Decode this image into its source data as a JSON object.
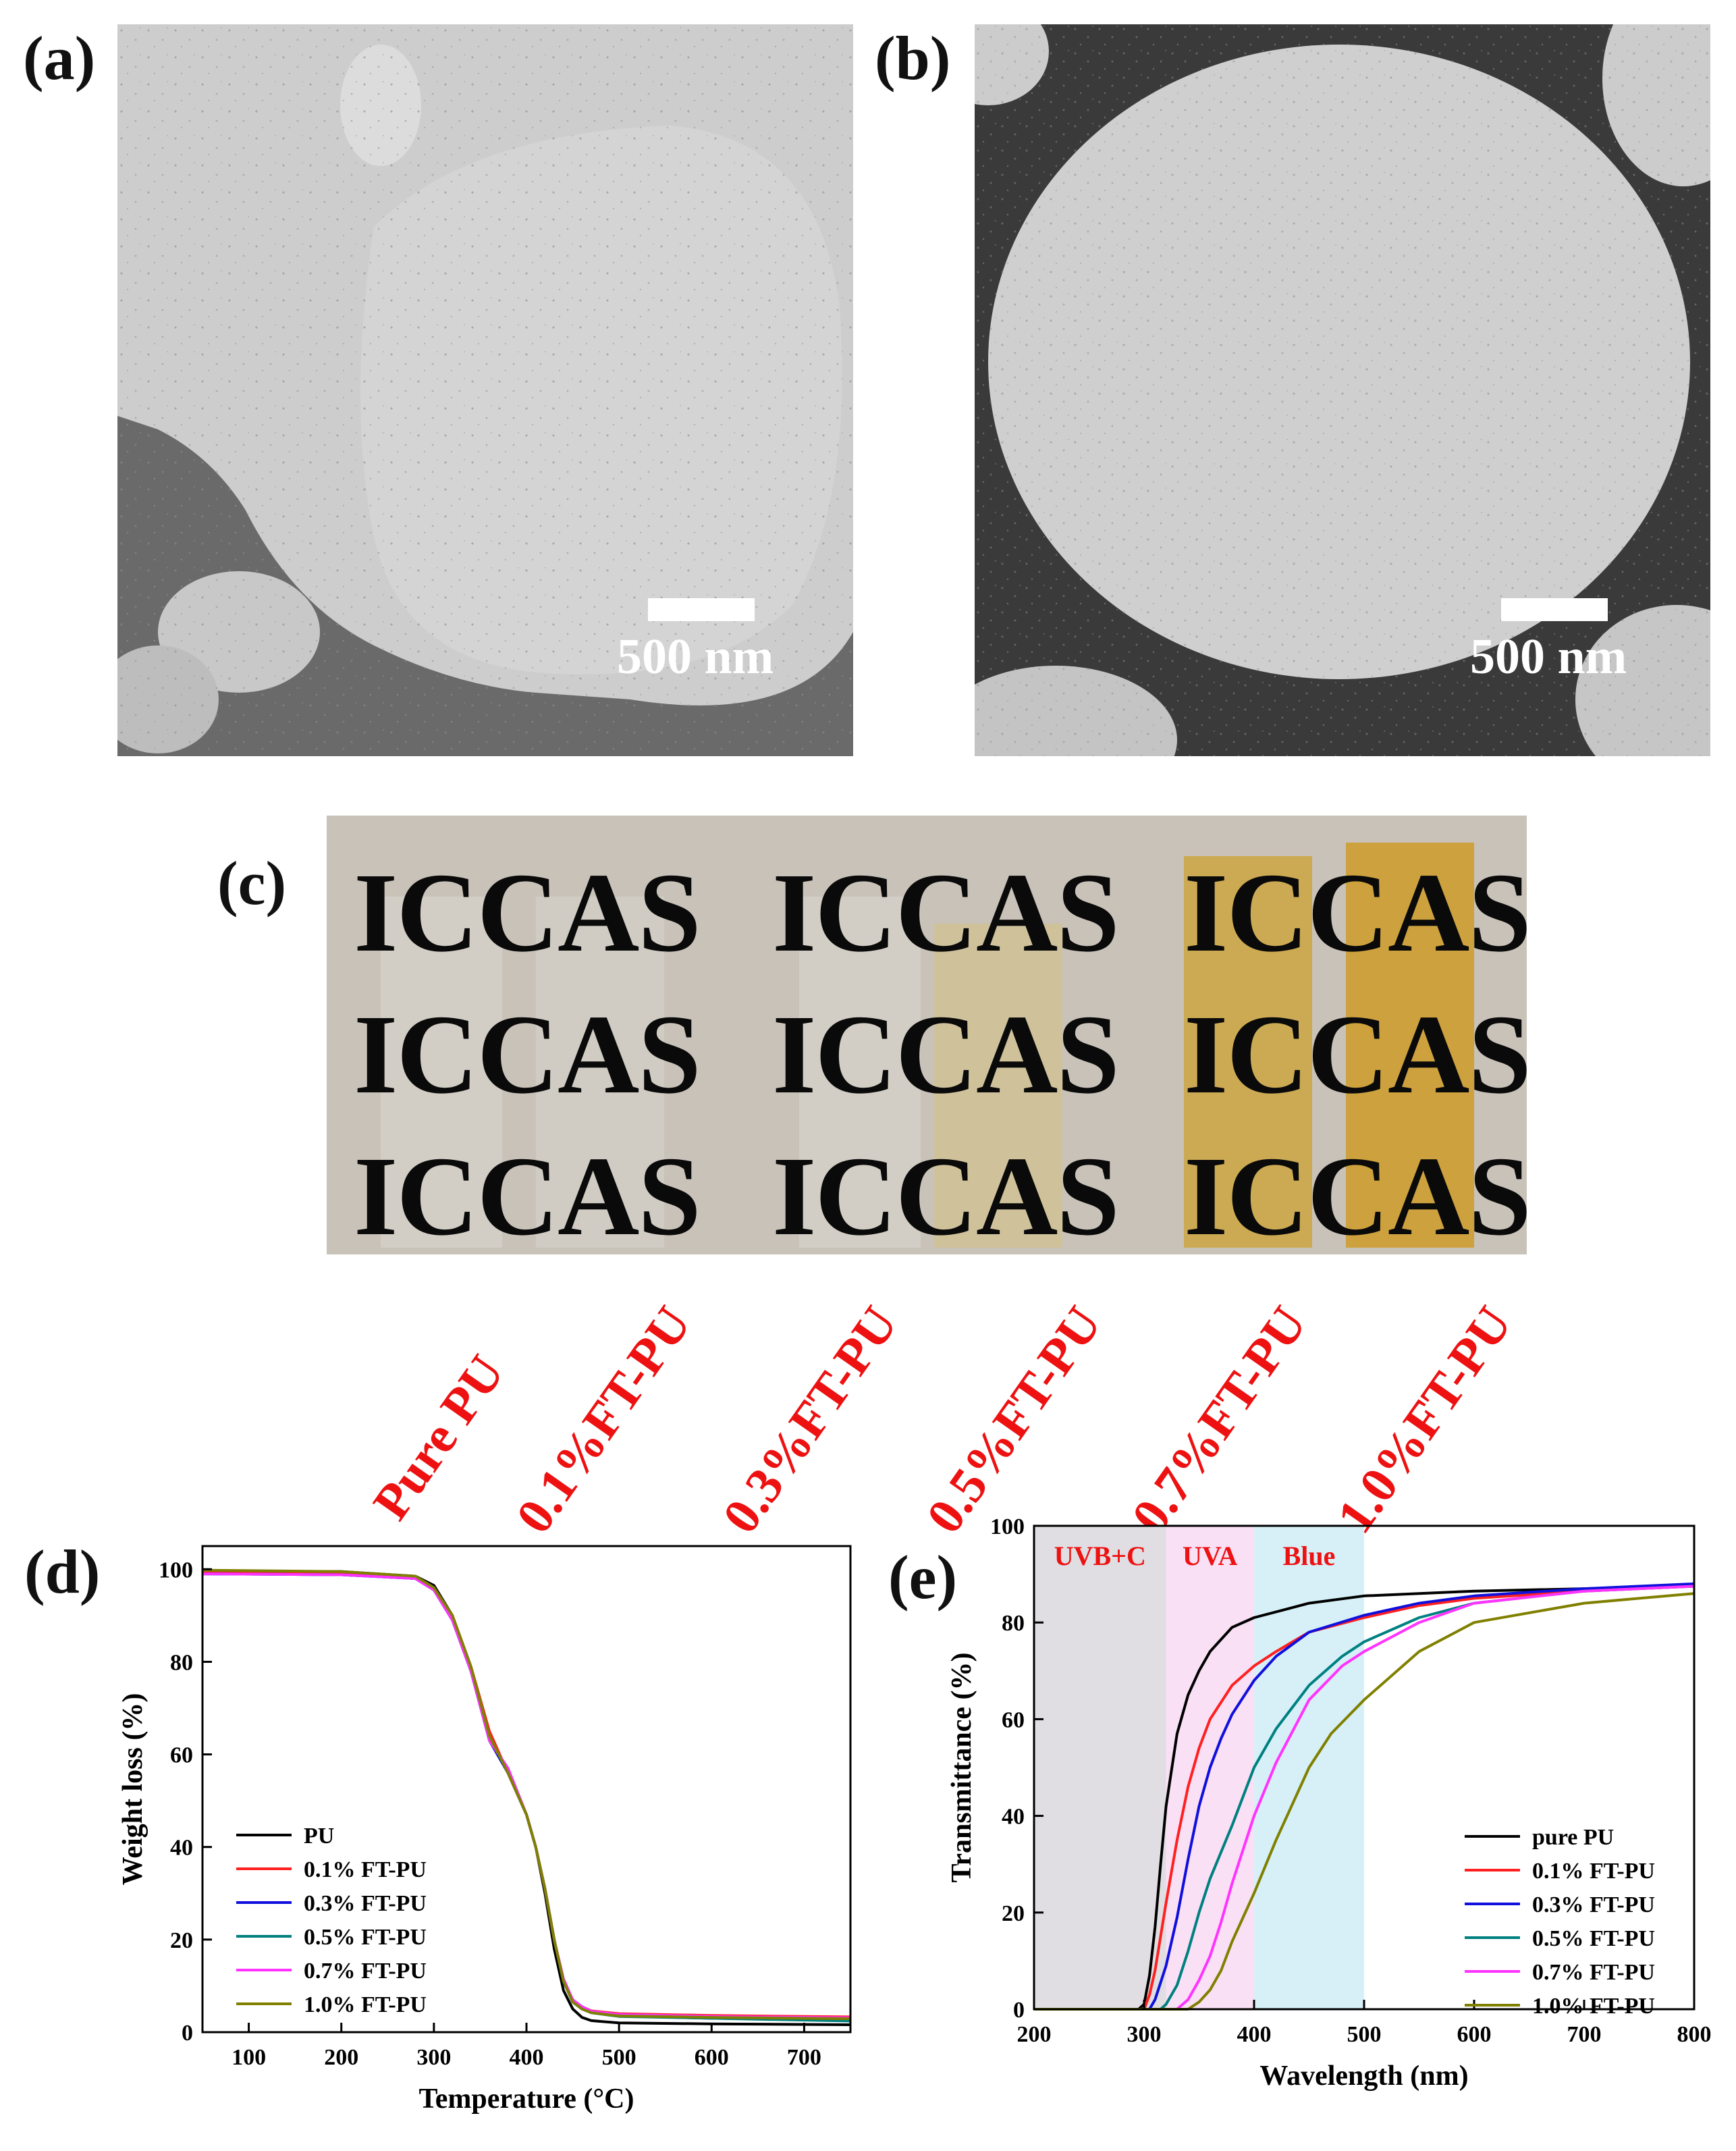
{
  "panels": {
    "a": {
      "letter": "(a)",
      "scale_label": "500 nm"
    },
    "b": {
      "letter": "(b)",
      "scale_label": "500 nm"
    },
    "c": {
      "letter": "(c)",
      "photo_text": "ICCAS",
      "sample_labels": [
        "Pure PU",
        "0.1%FT-PU",
        "0.3%FT-PU",
        "0.5%FT-PU",
        "0.7%FT-PU",
        "1.0%FT-PU"
      ]
    },
    "d": {
      "letter": "(d)"
    },
    "e": {
      "letter": "(e)"
    }
  },
  "colors": {
    "sample_label": "#ee1111",
    "series": [
      "#000000",
      "#ff2020",
      "#1010dd",
      "#008080",
      "#ff33ff",
      "#808000"
    ],
    "band_uvbc": "#e0dee2",
    "band_uva": "#fae0f5",
    "band_blue": "#d7f0f8",
    "band_text": "#ee1111"
  },
  "chart_data": [
    {
      "type": "line",
      "xlabel": "Temperature (°C)",
      "ylabel": "Weight loss (%)",
      "xlim": [
        50,
        750
      ],
      "ylim": [
        0,
        105
      ],
      "xticks": [
        100,
        200,
        300,
        400,
        500,
        600,
        700
      ],
      "yticks": [
        0,
        20,
        40,
        60,
        80,
        100
      ],
      "legend_position": "lower-left",
      "series": [
        {
          "name": "PU",
          "x": [
            50,
            200,
            280,
            300,
            320,
            340,
            360,
            380,
            400,
            410,
            420,
            430,
            440,
            450,
            460,
            470,
            500,
            600,
            750
          ],
          "y": [
            99.5,
            99.5,
            98.5,
            96.5,
            90,
            78,
            64,
            56,
            47,
            40,
            30,
            18,
            9,
            5,
            3.2,
            2.5,
            2,
            1.8,
            1.6
          ]
        },
        {
          "name": "0.1% FT-PU",
          "x": [
            50,
            200,
            280,
            300,
            320,
            340,
            360,
            380,
            400,
            410,
            420,
            430,
            440,
            450,
            460,
            470,
            500,
            600,
            750
          ],
          "y": [
            99.5,
            99,
            98,
            96,
            90,
            79,
            65,
            56,
            47,
            40,
            31,
            20,
            11,
            7,
            5.5,
            4.6,
            4,
            3.6,
            3.3
          ]
        },
        {
          "name": "0.3% FT-PU",
          "x": [
            50,
            200,
            280,
            300,
            320,
            340,
            360,
            380,
            400,
            410,
            420,
            430,
            440,
            450,
            460,
            470,
            500,
            600,
            750
          ],
          "y": [
            99,
            98.8,
            98,
            95.5,
            89,
            78,
            63,
            56,
            47,
            40,
            31,
            20,
            11,
            6.5,
            5,
            4.2,
            3.5,
            3,
            2.6
          ]
        },
        {
          "name": "0.5% FT-PU",
          "x": [
            50,
            200,
            280,
            300,
            320,
            340,
            360,
            380,
            400,
            410,
            420,
            430,
            440,
            450,
            460,
            470,
            500,
            600,
            750
          ],
          "y": [
            99,
            98.8,
            98,
            95.5,
            89,
            78,
            63,
            57,
            47,
            40,
            31,
            20,
            11,
            6.5,
            5,
            4.2,
            3.4,
            3,
            2.4
          ]
        },
        {
          "name": "0.7% FT-PU",
          "x": [
            50,
            200,
            280,
            300,
            320,
            340,
            360,
            380,
            400,
            410,
            420,
            430,
            440,
            450,
            460,
            470,
            500,
            600,
            750
          ],
          "y": [
            99,
            98.8,
            98,
            95.5,
            89,
            78,
            63,
            57,
            47,
            40,
            31,
            20,
            11.5,
            7,
            5.5,
            4.5,
            3.8,
            3.4,
            3.1
          ]
        },
        {
          "name": "1.0% FT-PU",
          "x": [
            50,
            200,
            280,
            300,
            320,
            340,
            360,
            380,
            400,
            410,
            420,
            430,
            440,
            450,
            460,
            470,
            500,
            600,
            750
          ],
          "y": [
            99.8,
            99.5,
            98.5,
            96,
            90,
            79,
            64,
            56,
            47,
            40,
            31,
            20,
            11,
            6.5,
            5,
            4.2,
            3.5,
            3.2,
            2.9
          ]
        }
      ]
    },
    {
      "type": "line",
      "xlabel": "Wavelength (nm)",
      "ylabel": "Transmittance (%)",
      "xlim": [
        200,
        800
      ],
      "ylim": [
        0,
        100
      ],
      "xticks": [
        200,
        300,
        400,
        500,
        600,
        700,
        800
      ],
      "yticks": [
        0,
        20,
        40,
        60,
        80,
        100
      ],
      "legend_position": "lower-right",
      "bands": [
        {
          "label": "UVB+C",
          "from": 200,
          "to": 320
        },
        {
          "label": "UVA",
          "from": 320,
          "to": 400
        },
        {
          "label": "Blue",
          "from": 400,
          "to": 500
        }
      ],
      "series": [
        {
          "name": "pure PU",
          "x": [
            200,
            295,
            300,
            305,
            310,
            315,
            320,
            330,
            340,
            350,
            360,
            380,
            400,
            450,
            500,
            600,
            700,
            800
          ],
          "y": [
            0,
            0,
            1,
            7,
            17,
            30,
            42,
            57,
            65,
            70,
            74,
            79,
            81,
            84,
            85.5,
            86.5,
            87,
            87.5
          ]
        },
        {
          "name": "0.1% FT-PU",
          "x": [
            200,
            300,
            305,
            310,
            320,
            330,
            340,
            350,
            360,
            380,
            400,
            420,
            450,
            500,
            550,
            600,
            700,
            800
          ],
          "y": [
            0,
            0,
            3,
            8,
            22,
            35,
            46,
            54,
            60,
            67,
            71,
            74,
            78,
            81,
            83.5,
            85,
            86.5,
            87.5
          ]
        },
        {
          "name": "0.3% FT-PU",
          "x": [
            200,
            305,
            310,
            320,
            330,
            340,
            350,
            360,
            370,
            380,
            400,
            420,
            450,
            500,
            550,
            600,
            700,
            800
          ],
          "y": [
            0,
            0,
            2,
            9,
            19,
            31,
            42,
            50,
            56,
            61,
            68,
            73,
            78,
            81.5,
            84,
            85.5,
            87,
            88
          ]
        },
        {
          "name": "0.5% FT-PU",
          "x": [
            200,
            315,
            320,
            330,
            340,
            350,
            360,
            380,
            400,
            420,
            450,
            480,
            500,
            550,
            600,
            700,
            800
          ],
          "y": [
            0,
            0,
            1,
            5,
            12,
            20,
            27,
            38,
            50,
            58,
            67,
            73,
            76,
            81,
            84,
            86.5,
            87.5
          ]
        },
        {
          "name": "0.7% FT-PU",
          "x": [
            200,
            330,
            340,
            350,
            360,
            370,
            380,
            400,
            420,
            450,
            480,
            500,
            550,
            600,
            700,
            800
          ],
          "y": [
            0,
            0,
            2,
            6,
            11,
            18,
            26,
            40,
            51,
            64,
            71,
            74,
            80,
            84,
            86.5,
            87.5
          ]
        },
        {
          "name": "1.0% FT-PU",
          "x": [
            200,
            340,
            350,
            360,
            370,
            380,
            390,
            400,
            420,
            450,
            470,
            500,
            550,
            600,
            700,
            800
          ],
          "y": [
            0,
            0,
            1.5,
            4,
            8,
            14,
            19,
            24,
            35,
            50,
            57,
            64,
            74,
            80,
            84,
            86
          ]
        }
      ]
    }
  ]
}
